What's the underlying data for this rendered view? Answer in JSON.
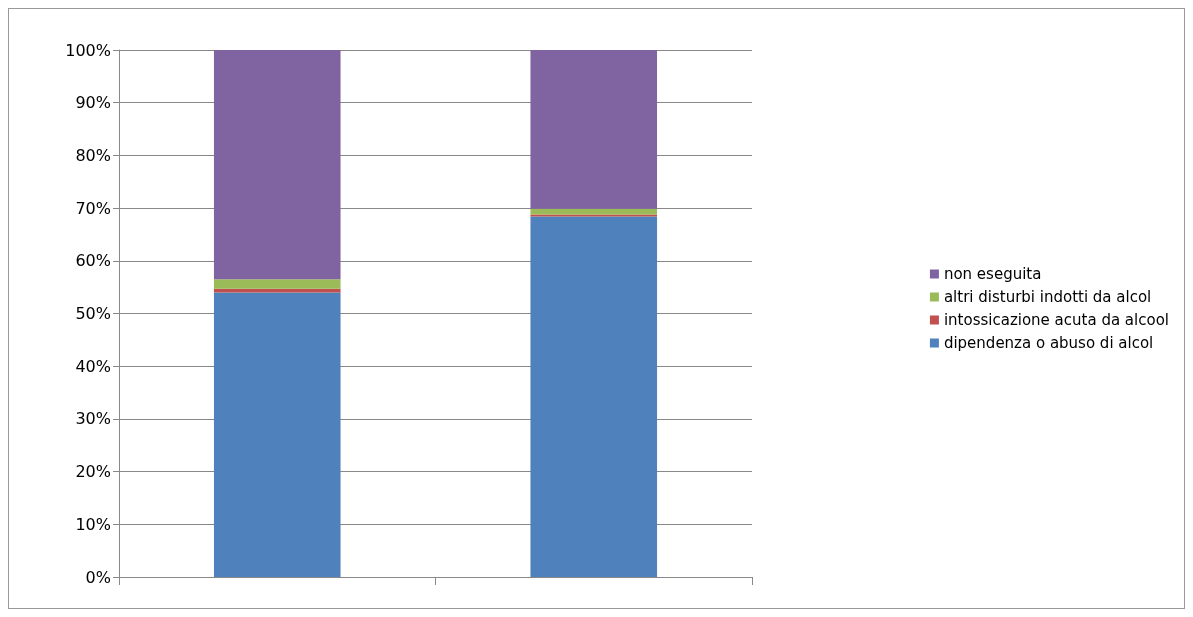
{
  "chart_data": {
    "type": "bar",
    "stacked": true,
    "categories": [
      null,
      null
    ],
    "series": [
      {
        "name": "dipendenza o abuso di alcol",
        "color": "#4f81bd",
        "values": [
          54,
          68.4
        ]
      },
      {
        "name": "intossicazione acuta da alcool",
        "color": "#c0504d",
        "values": [
          0.7,
          0.4
        ]
      },
      {
        "name": "altri disturbi indotti da alcol",
        "color": "#9bbb59",
        "values": [
          1.8,
          1.1
        ]
      },
      {
        "name": "non eseguita",
        "color": "#8064a2",
        "values": [
          43.5,
          30.1
        ]
      }
    ],
    "ylim": [
      0,
      100
    ],
    "yticks": [
      {
        "value": 0,
        "label": "0%"
      },
      {
        "value": 10,
        "label": "10%"
      },
      {
        "value": 20,
        "label": "20%"
      },
      {
        "value": 30,
        "label": "30%"
      },
      {
        "value": 40,
        "label": "40%"
      },
      {
        "value": 50,
        "label": "50%"
      },
      {
        "value": 60,
        "label": "60%"
      },
      {
        "value": 70,
        "label": "70%"
      },
      {
        "value": 80,
        "label": "80%"
      },
      {
        "value": 90,
        "label": "90%"
      },
      {
        "value": 100,
        "label": "100%"
      }
    ],
    "grid": "y",
    "legend": "right"
  }
}
